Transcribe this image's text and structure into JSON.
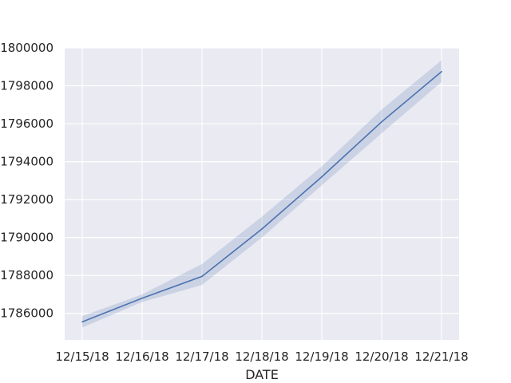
{
  "chart_data": {
    "type": "line",
    "title": "",
    "xlabel": "DATE",
    "ylabel": "",
    "x": [
      "12/15/18",
      "12/16/18",
      "12/17/18",
      "12/18/18",
      "12/19/18",
      "12/20/18",
      "12/21/18"
    ],
    "series": [
      {
        "values": [
          1785550,
          1786800,
          1787950,
          1790450,
          1793200,
          1796100,
          1798750
        ],
        "ci_low": [
          1785250,
          1786600,
          1787500,
          1790000,
          1792750,
          1795500,
          1798200
        ],
        "ci_high": [
          1785850,
          1787000,
          1788600,
          1791100,
          1793750,
          1796750,
          1799350
        ],
        "color": "#4c72b0"
      }
    ],
    "ylim": [
      1784600,
      1800000
    ],
    "yticks": [
      1786000,
      1788000,
      1790000,
      1792000,
      1794000,
      1796000,
      1798000,
      1800000
    ],
    "grid": true,
    "style": {
      "plot_background": "#eaeaf2",
      "grid_color": "#ffffff",
      "band_color": "#4c72b0"
    }
  }
}
